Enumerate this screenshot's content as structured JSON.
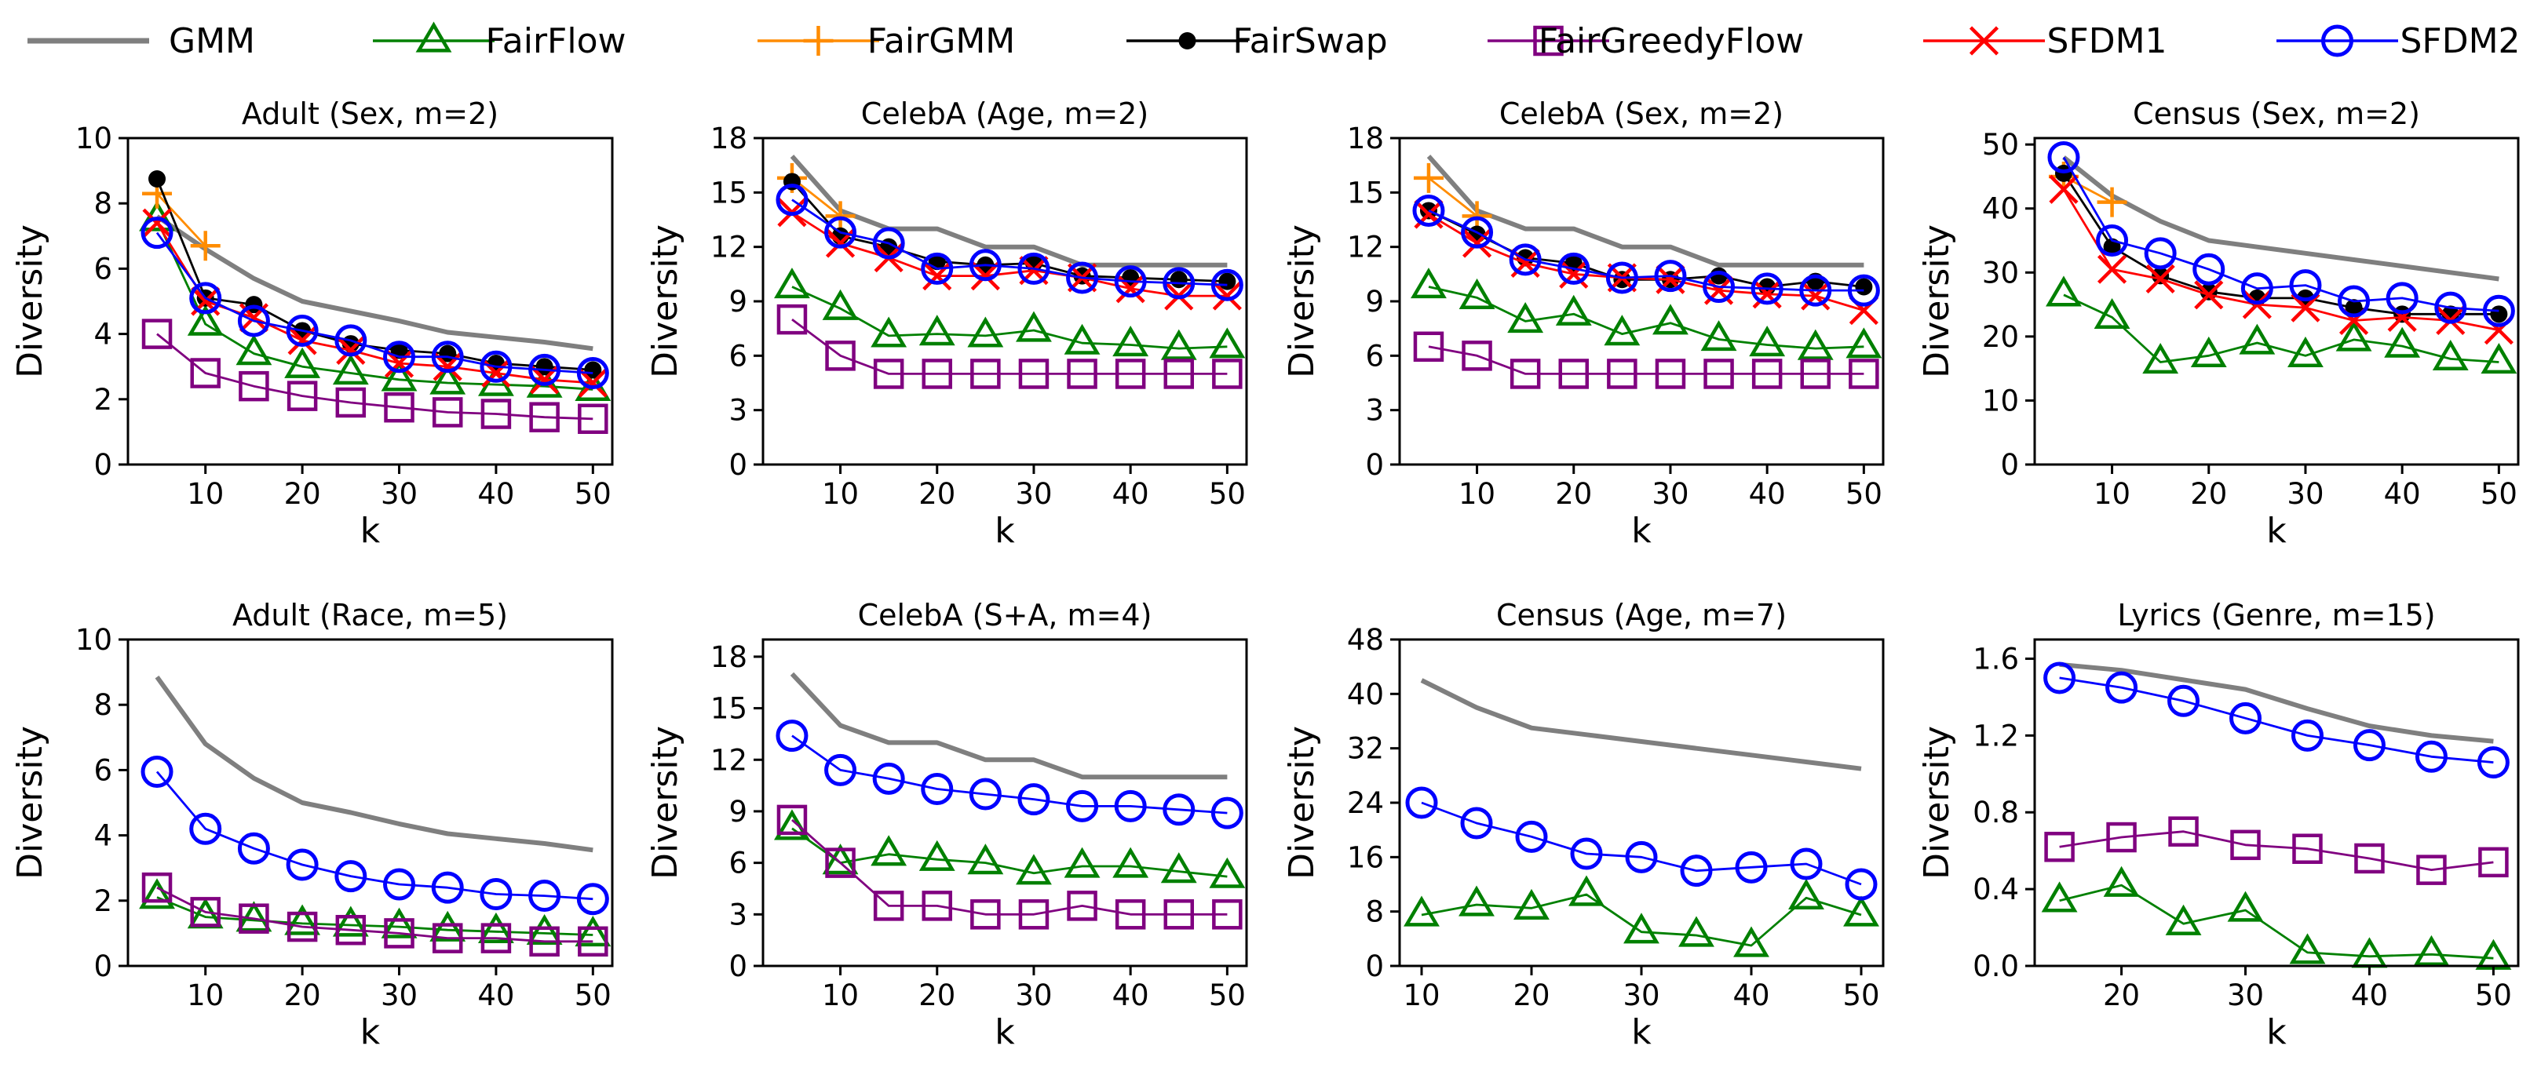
{
  "legend": [
    {
      "name": "GMM",
      "color": "#7f7f7f",
      "marker": "none"
    },
    {
      "name": "FairFlow",
      "color": "#008000",
      "marker": "triangle"
    },
    {
      "name": "FairGMM",
      "color": "#ff8c00",
      "marker": "plus"
    },
    {
      "name": "FairSwap",
      "color": "#000000",
      "marker": "dot"
    },
    {
      "name": "FairGreedyFlow",
      "color": "#800080",
      "marker": "square"
    },
    {
      "name": "SFDM1",
      "color": "#ff0000",
      "marker": "x"
    },
    {
      "name": "SFDM2",
      "color": "#0000ff",
      "marker": "circle"
    }
  ],
  "chart_data": [
    {
      "type": "line",
      "title": "Adult (Sex, m=2)",
      "xlabel": "k",
      "ylabel": "Diversity",
      "xlim": [
        2,
        52
      ],
      "ylim": [
        0,
        10
      ],
      "xticks": [
        10,
        20,
        30,
        40,
        50
      ],
      "yticks": [
        0,
        2,
        4,
        6,
        8,
        10
      ],
      "x": [
        5,
        10,
        15,
        20,
        25,
        30,
        35,
        40,
        45,
        50
      ],
      "series": [
        {
          "name": "GMM",
          "values": [
            7.6,
            6.6,
            5.7,
            5.0,
            4.7,
            4.4,
            4.05,
            3.9,
            3.75,
            3.55
          ]
        },
        {
          "name": "FairFlow",
          "values": [
            7.5,
            4.3,
            3.4,
            3.0,
            2.8,
            2.6,
            2.5,
            2.45,
            2.4,
            2.3
          ]
        },
        {
          "name": "FairGMM",
          "values": [
            8.3,
            6.7,
            null,
            null,
            null,
            null,
            null,
            null,
            null,
            null
          ]
        },
        {
          "name": "FairSwap",
          "values": [
            8.75,
            5.1,
            4.9,
            4.1,
            3.7,
            3.5,
            3.4,
            3.1,
            3.0,
            2.9
          ]
        },
        {
          "name": "FairGreedyFlow",
          "values": [
            4.0,
            2.8,
            2.4,
            2.1,
            1.9,
            1.75,
            1.6,
            1.55,
            1.45,
            1.4
          ]
        },
        {
          "name": "SFDM1",
          "values": [
            7.4,
            5.0,
            4.5,
            3.8,
            3.5,
            3.1,
            3.0,
            2.8,
            2.6,
            2.5
          ]
        },
        {
          "name": "SFDM2",
          "values": [
            7.1,
            5.1,
            4.4,
            4.1,
            3.8,
            3.3,
            3.3,
            3.0,
            2.9,
            2.8
          ]
        }
      ]
    },
    {
      "type": "line",
      "title": "CelebA (Age, m=2)",
      "xlabel": "k",
      "ylabel": "Diversity",
      "xlim": [
        2,
        52
      ],
      "ylim": [
        0,
        18
      ],
      "xticks": [
        10,
        20,
        30,
        40,
        50
      ],
      "yticks": [
        0,
        3,
        6,
        9,
        12,
        15,
        18
      ],
      "x": [
        5,
        10,
        15,
        20,
        25,
        30,
        35,
        40,
        45,
        50
      ],
      "series": [
        {
          "name": "GMM",
          "values": [
            17.0,
            14.0,
            13.0,
            13.0,
            12.0,
            12.0,
            11.0,
            11.0,
            11.0,
            11.0
          ]
        },
        {
          "name": "FairFlow",
          "values": [
            9.8,
            8.6,
            7.1,
            7.2,
            7.1,
            7.4,
            6.7,
            6.6,
            6.4,
            6.5
          ]
        },
        {
          "name": "FairGMM",
          "values": [
            15.8,
            13.7,
            null,
            null,
            null,
            null,
            null,
            null,
            null,
            null
          ]
        },
        {
          "name": "FairSwap",
          "values": [
            15.6,
            12.6,
            12.0,
            11.2,
            11.0,
            11.1,
            10.4,
            10.3,
            10.2,
            10.1
          ]
        },
        {
          "name": "FairGreedyFlow",
          "values": [
            8.0,
            6.0,
            5.0,
            5.0,
            5.0,
            5.0,
            5.0,
            5.0,
            5.0,
            5.0
          ]
        },
        {
          "name": "SFDM1",
          "values": [
            13.9,
            12.2,
            11.4,
            10.4,
            10.4,
            10.7,
            10.3,
            9.7,
            9.3,
            9.3
          ]
        },
        {
          "name": "SFDM2",
          "values": [
            14.6,
            12.8,
            12.2,
            10.8,
            11.0,
            10.8,
            10.3,
            10.1,
            10.0,
            9.9
          ]
        }
      ]
    },
    {
      "type": "line",
      "title": "CelebA (Sex, m=2)",
      "xlabel": "k",
      "ylabel": "Diversity",
      "xlim": [
        2,
        52
      ],
      "ylim": [
        0,
        18
      ],
      "xticks": [
        10,
        20,
        30,
        40,
        50
      ],
      "yticks": [
        0,
        3,
        6,
        9,
        12,
        15,
        18
      ],
      "x": [
        5,
        10,
        15,
        20,
        25,
        30,
        35,
        40,
        45,
        50
      ],
      "series": [
        {
          "name": "GMM",
          "values": [
            17.0,
            14.0,
            13.0,
            13.0,
            12.0,
            12.0,
            11.0,
            11.0,
            11.0,
            11.0
          ]
        },
        {
          "name": "FairFlow",
          "values": [
            9.8,
            9.2,
            7.9,
            8.3,
            7.2,
            7.8,
            6.9,
            6.6,
            6.4,
            6.5
          ]
        },
        {
          "name": "FairGMM",
          "values": [
            15.8,
            13.7,
            null,
            null,
            null,
            null,
            null,
            null,
            null,
            null
          ]
        },
        {
          "name": "FairSwap",
          "values": [
            14.0,
            12.7,
            11.4,
            11.1,
            10.2,
            10.2,
            10.4,
            9.8,
            10.1,
            9.8
          ]
        },
        {
          "name": "FairGreedyFlow",
          "values": [
            6.5,
            6.0,
            5.0,
            5.0,
            5.0,
            5.0,
            5.0,
            5.0,
            5.0,
            5.0
          ]
        },
        {
          "name": "SFDM1",
          "values": [
            13.8,
            12.2,
            11.1,
            10.5,
            10.3,
            10.2,
            9.6,
            9.4,
            9.3,
            8.5
          ]
        },
        {
          "name": "SFDM2",
          "values": [
            14.0,
            12.8,
            11.3,
            10.8,
            10.3,
            10.4,
            9.8,
            9.7,
            9.6,
            9.6
          ]
        }
      ]
    },
    {
      "type": "line",
      "title": "Census (Sex, m=2)",
      "xlabel": "k",
      "ylabel": "Diversity",
      "xlim": [
        2,
        52
      ],
      "ylim": [
        0,
        51
      ],
      "xticks": [
        10,
        20,
        30,
        40,
        50
      ],
      "yticks": [
        0,
        10,
        20,
        30,
        40,
        50
      ],
      "x": [
        5,
        10,
        15,
        20,
        25,
        30,
        35,
        40,
        45,
        50
      ],
      "series": [
        {
          "name": "GMM",
          "values": [
            48.0,
            42.0,
            38.0,
            35.0,
            34.0,
            33.0,
            32.0,
            31.0,
            30.0,
            29.0
          ]
        },
        {
          "name": "FairFlow",
          "values": [
            26.5,
            23.0,
            16.0,
            17.0,
            19.0,
            17.0,
            19.5,
            18.5,
            16.5,
            16.0
          ]
        },
        {
          "name": "FairGMM",
          "values": [
            45.0,
            41.0,
            null,
            null,
            null,
            null,
            null,
            null,
            null,
            null
          ]
        },
        {
          "name": "FairSwap",
          "values": [
            45.5,
            34.0,
            29.5,
            27.0,
            26.0,
            26.0,
            24.5,
            23.5,
            23.5,
            23.5
          ]
        },
        {
          "name": "SFDM1",
          "values": [
            43.0,
            30.5,
            29.0,
            26.5,
            25.0,
            24.5,
            22.5,
            23.0,
            22.5,
            21.0
          ]
        },
        {
          "name": "SFDM2",
          "values": [
            48.0,
            35.0,
            33.0,
            30.5,
            27.5,
            28.0,
            25.5,
            26.0,
            24.5,
            24.0
          ]
        }
      ]
    },
    {
      "type": "line",
      "title": "Adult (Race, m=5)",
      "xlabel": "k",
      "ylabel": "Diversity",
      "xlim": [
        2,
        52
      ],
      "ylim": [
        0,
        10
      ],
      "xticks": [
        10,
        20,
        30,
        40,
        50
      ],
      "yticks": [
        0,
        2,
        4,
        6,
        8,
        10
      ],
      "x": [
        5,
        10,
        15,
        20,
        25,
        30,
        35,
        40,
        45,
        50
      ],
      "series": [
        {
          "name": "GMM",
          "values": [
            8.85,
            6.8,
            5.75,
            5.0,
            4.7,
            4.35,
            4.05,
            3.9,
            3.75,
            3.55
          ]
        },
        {
          "name": "FairFlow",
          "values": [
            2.1,
            1.5,
            1.4,
            1.3,
            1.25,
            1.2,
            1.1,
            1.05,
            1.0,
            0.95
          ]
        },
        {
          "name": "FairGreedyFlow",
          "values": [
            2.4,
            1.65,
            1.45,
            1.2,
            1.1,
            1.0,
            0.85,
            0.85,
            0.75,
            0.75
          ]
        },
        {
          "name": "SFDM2",
          "values": [
            5.95,
            4.2,
            3.6,
            3.1,
            2.75,
            2.5,
            2.4,
            2.2,
            2.15,
            2.05
          ]
        }
      ]
    },
    {
      "type": "line",
      "title": "CelebA (S+A, m=4)",
      "xlabel": "k",
      "ylabel": "Diversity",
      "xlim": [
        2,
        52
      ],
      "ylim": [
        0,
        19
      ],
      "xticks": [
        10,
        20,
        30,
        40,
        50
      ],
      "yticks": [
        0,
        3,
        6,
        9,
        12,
        15,
        18
      ],
      "x": [
        5,
        10,
        15,
        20,
        25,
        30,
        35,
        40,
        45,
        50
      ],
      "series": [
        {
          "name": "GMM",
          "values": [
            17.0,
            14.0,
            13.0,
            13.0,
            12.0,
            12.0,
            11.0,
            11.0,
            11.0,
            11.0
          ]
        },
        {
          "name": "FairFlow",
          "values": [
            8.0,
            6.0,
            6.5,
            6.2,
            6.0,
            5.4,
            5.8,
            5.8,
            5.5,
            5.2
          ]
        },
        {
          "name": "FairGreedyFlow",
          "values": [
            8.5,
            6.0,
            3.5,
            3.5,
            3.0,
            3.0,
            3.5,
            3.0,
            3.0,
            3.0
          ]
        },
        {
          "name": "SFDM2",
          "values": [
            13.4,
            11.4,
            10.9,
            10.3,
            10.0,
            9.7,
            9.3,
            9.3,
            9.1,
            8.9
          ]
        }
      ]
    },
    {
      "type": "line",
      "title": "Census (Age, m=7)",
      "xlabel": "k",
      "ylabel": "Diversity",
      "xlim": [
        8,
        52
      ],
      "ylim": [
        0,
        48
      ],
      "xticks": [
        10,
        20,
        30,
        40,
        50
      ],
      "yticks": [
        0,
        8,
        16,
        24,
        32,
        40,
        48
      ],
      "x": [
        10,
        15,
        20,
        25,
        30,
        35,
        40,
        45,
        50
      ],
      "series": [
        {
          "name": "GMM",
          "values": [
            42.0,
            38.0,
            35.0,
            34.0,
            33.0,
            32.0,
            31.0,
            30.0,
            29.0
          ]
        },
        {
          "name": "FairFlow",
          "values": [
            7.5,
            9.0,
            8.5,
            10.5,
            5.0,
            4.5,
            3.0,
            10.0,
            7.5
          ]
        },
        {
          "name": "SFDM2",
          "values": [
            24.0,
            21.0,
            19.0,
            16.5,
            16.0,
            14.0,
            14.5,
            15.0,
            12.0
          ]
        }
      ]
    },
    {
      "type": "line",
      "title": "Lyrics (Genre, m=15)",
      "xlabel": "k",
      "ylabel": "Diversity",
      "xlim": [
        13,
        52
      ],
      "ylim": [
        0,
        1.7
      ],
      "xticks": [
        20,
        30,
        40,
        50
      ],
      "yticks": [
        "0.0",
        "0.4",
        "0.8",
        "1.2",
        "1.6"
      ],
      "x": [
        15,
        20,
        25,
        30,
        35,
        40,
        45,
        50
      ],
      "series": [
        {
          "name": "GMM",
          "values": [
            1.57,
            1.54,
            1.49,
            1.44,
            1.34,
            1.25,
            1.2,
            1.17
          ]
        },
        {
          "name": "FairFlow",
          "values": [
            0.34,
            0.42,
            0.22,
            0.29,
            0.07,
            0.05,
            0.06,
            0.04
          ]
        },
        {
          "name": "FairGreedyFlow",
          "values": [
            0.62,
            0.67,
            0.7,
            0.63,
            0.61,
            0.56,
            0.5,
            0.54
          ]
        },
        {
          "name": "SFDM2",
          "values": [
            1.5,
            1.45,
            1.38,
            1.29,
            1.2,
            1.15,
            1.09,
            1.06
          ]
        }
      ]
    }
  ]
}
